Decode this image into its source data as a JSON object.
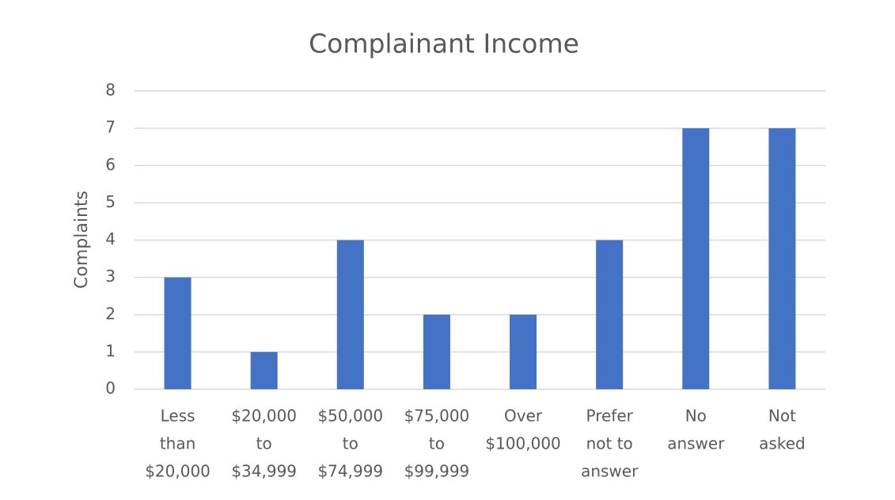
{
  "chart_data": {
    "type": "bar",
    "title": "Complainant Income",
    "y_label": "Complaints",
    "categories": [
      [
        "Less",
        "than",
        "$20,000"
      ],
      [
        "$20,000",
        "to",
        "$34,999"
      ],
      [
        "$50,000",
        "to",
        "$74,999"
      ],
      [
        "$75,000",
        "to",
        "$99,999"
      ],
      [
        "Over",
        "$100,000"
      ],
      [
        "Prefer",
        "not to",
        "answer"
      ],
      [
        "No",
        "answer"
      ],
      [
        "Not",
        "asked"
      ]
    ],
    "values": [
      3,
      1,
      4,
      2,
      2,
      4,
      7,
      7
    ],
    "color": "#4472c4",
    "ylim": [
      0,
      8
    ],
    "yticks": [
      0,
      1,
      2,
      3,
      4,
      5,
      6,
      7,
      8
    ],
    "grid": true
  }
}
